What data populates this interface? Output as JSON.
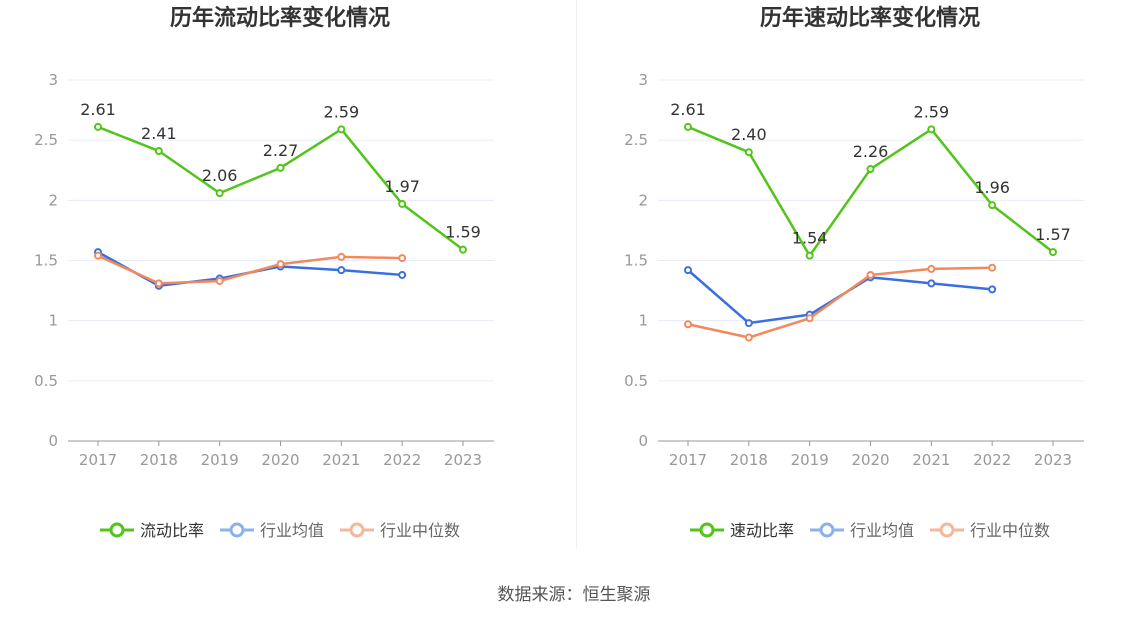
{
  "footer": {
    "source": "数据来源：恒生聚源"
  },
  "colors": {
    "main": "#52c41a",
    "avg": "#3b6fe0",
    "median": "#f08a5d",
    "avg_legend": "#8fb0ef",
    "median_legend": "#f5b79a",
    "grid": "#e8ecf5",
    "axis": "#999999",
    "text": "#333333",
    "tick": "#999999"
  },
  "chart_data": [
    {
      "type": "line",
      "title": "历年流动比率变化情况",
      "categories": [
        "2017",
        "2018",
        "2019",
        "2020",
        "2021",
        "2022",
        "2023"
      ],
      "ylim": [
        0,
        3
      ],
      "yticks": [
        "0",
        "0.5",
        "1",
        "1.5",
        "2",
        "2.5",
        "3"
      ],
      "grid": true,
      "legend_position": "bottom",
      "series": [
        {
          "name": "流动比率",
          "role": "main",
          "values": [
            2.61,
            2.41,
            2.06,
            2.27,
            2.59,
            1.97,
            1.59
          ],
          "labels": [
            "2.61",
            "2.41",
            "2.06",
            "2.27",
            "2.59",
            "1.97",
            "1.59"
          ]
        },
        {
          "name": "行业均值",
          "role": "avg",
          "values": [
            1.57,
            1.29,
            1.35,
            1.45,
            1.42,
            1.38,
            null
          ]
        },
        {
          "name": "行业中位数",
          "role": "median",
          "values": [
            1.54,
            1.31,
            1.33,
            1.47,
            1.53,
            1.52,
            null
          ]
        }
      ]
    },
    {
      "type": "line",
      "title": "历年速动比率变化情况",
      "categories": [
        "2017",
        "2018",
        "2019",
        "2020",
        "2021",
        "2022",
        "2023"
      ],
      "ylim": [
        0,
        3
      ],
      "yticks": [
        "0",
        "0.5",
        "1",
        "1.5",
        "2",
        "2.5",
        "3"
      ],
      "grid": true,
      "legend_position": "bottom",
      "series": [
        {
          "name": "速动比率",
          "role": "main",
          "values": [
            2.61,
            2.4,
            1.54,
            2.26,
            2.59,
            1.96,
            1.57
          ],
          "labels": [
            "2.61",
            "2.40",
            "1.54",
            "2.26",
            "2.59",
            "1.96",
            "1.57"
          ]
        },
        {
          "name": "行业均值",
          "role": "avg",
          "values": [
            1.42,
            0.98,
            1.05,
            1.36,
            1.31,
            1.26,
            null
          ]
        },
        {
          "name": "行业中位数",
          "role": "median",
          "values": [
            0.97,
            0.86,
            1.02,
            1.38,
            1.43,
            1.44,
            null
          ]
        }
      ]
    }
  ]
}
